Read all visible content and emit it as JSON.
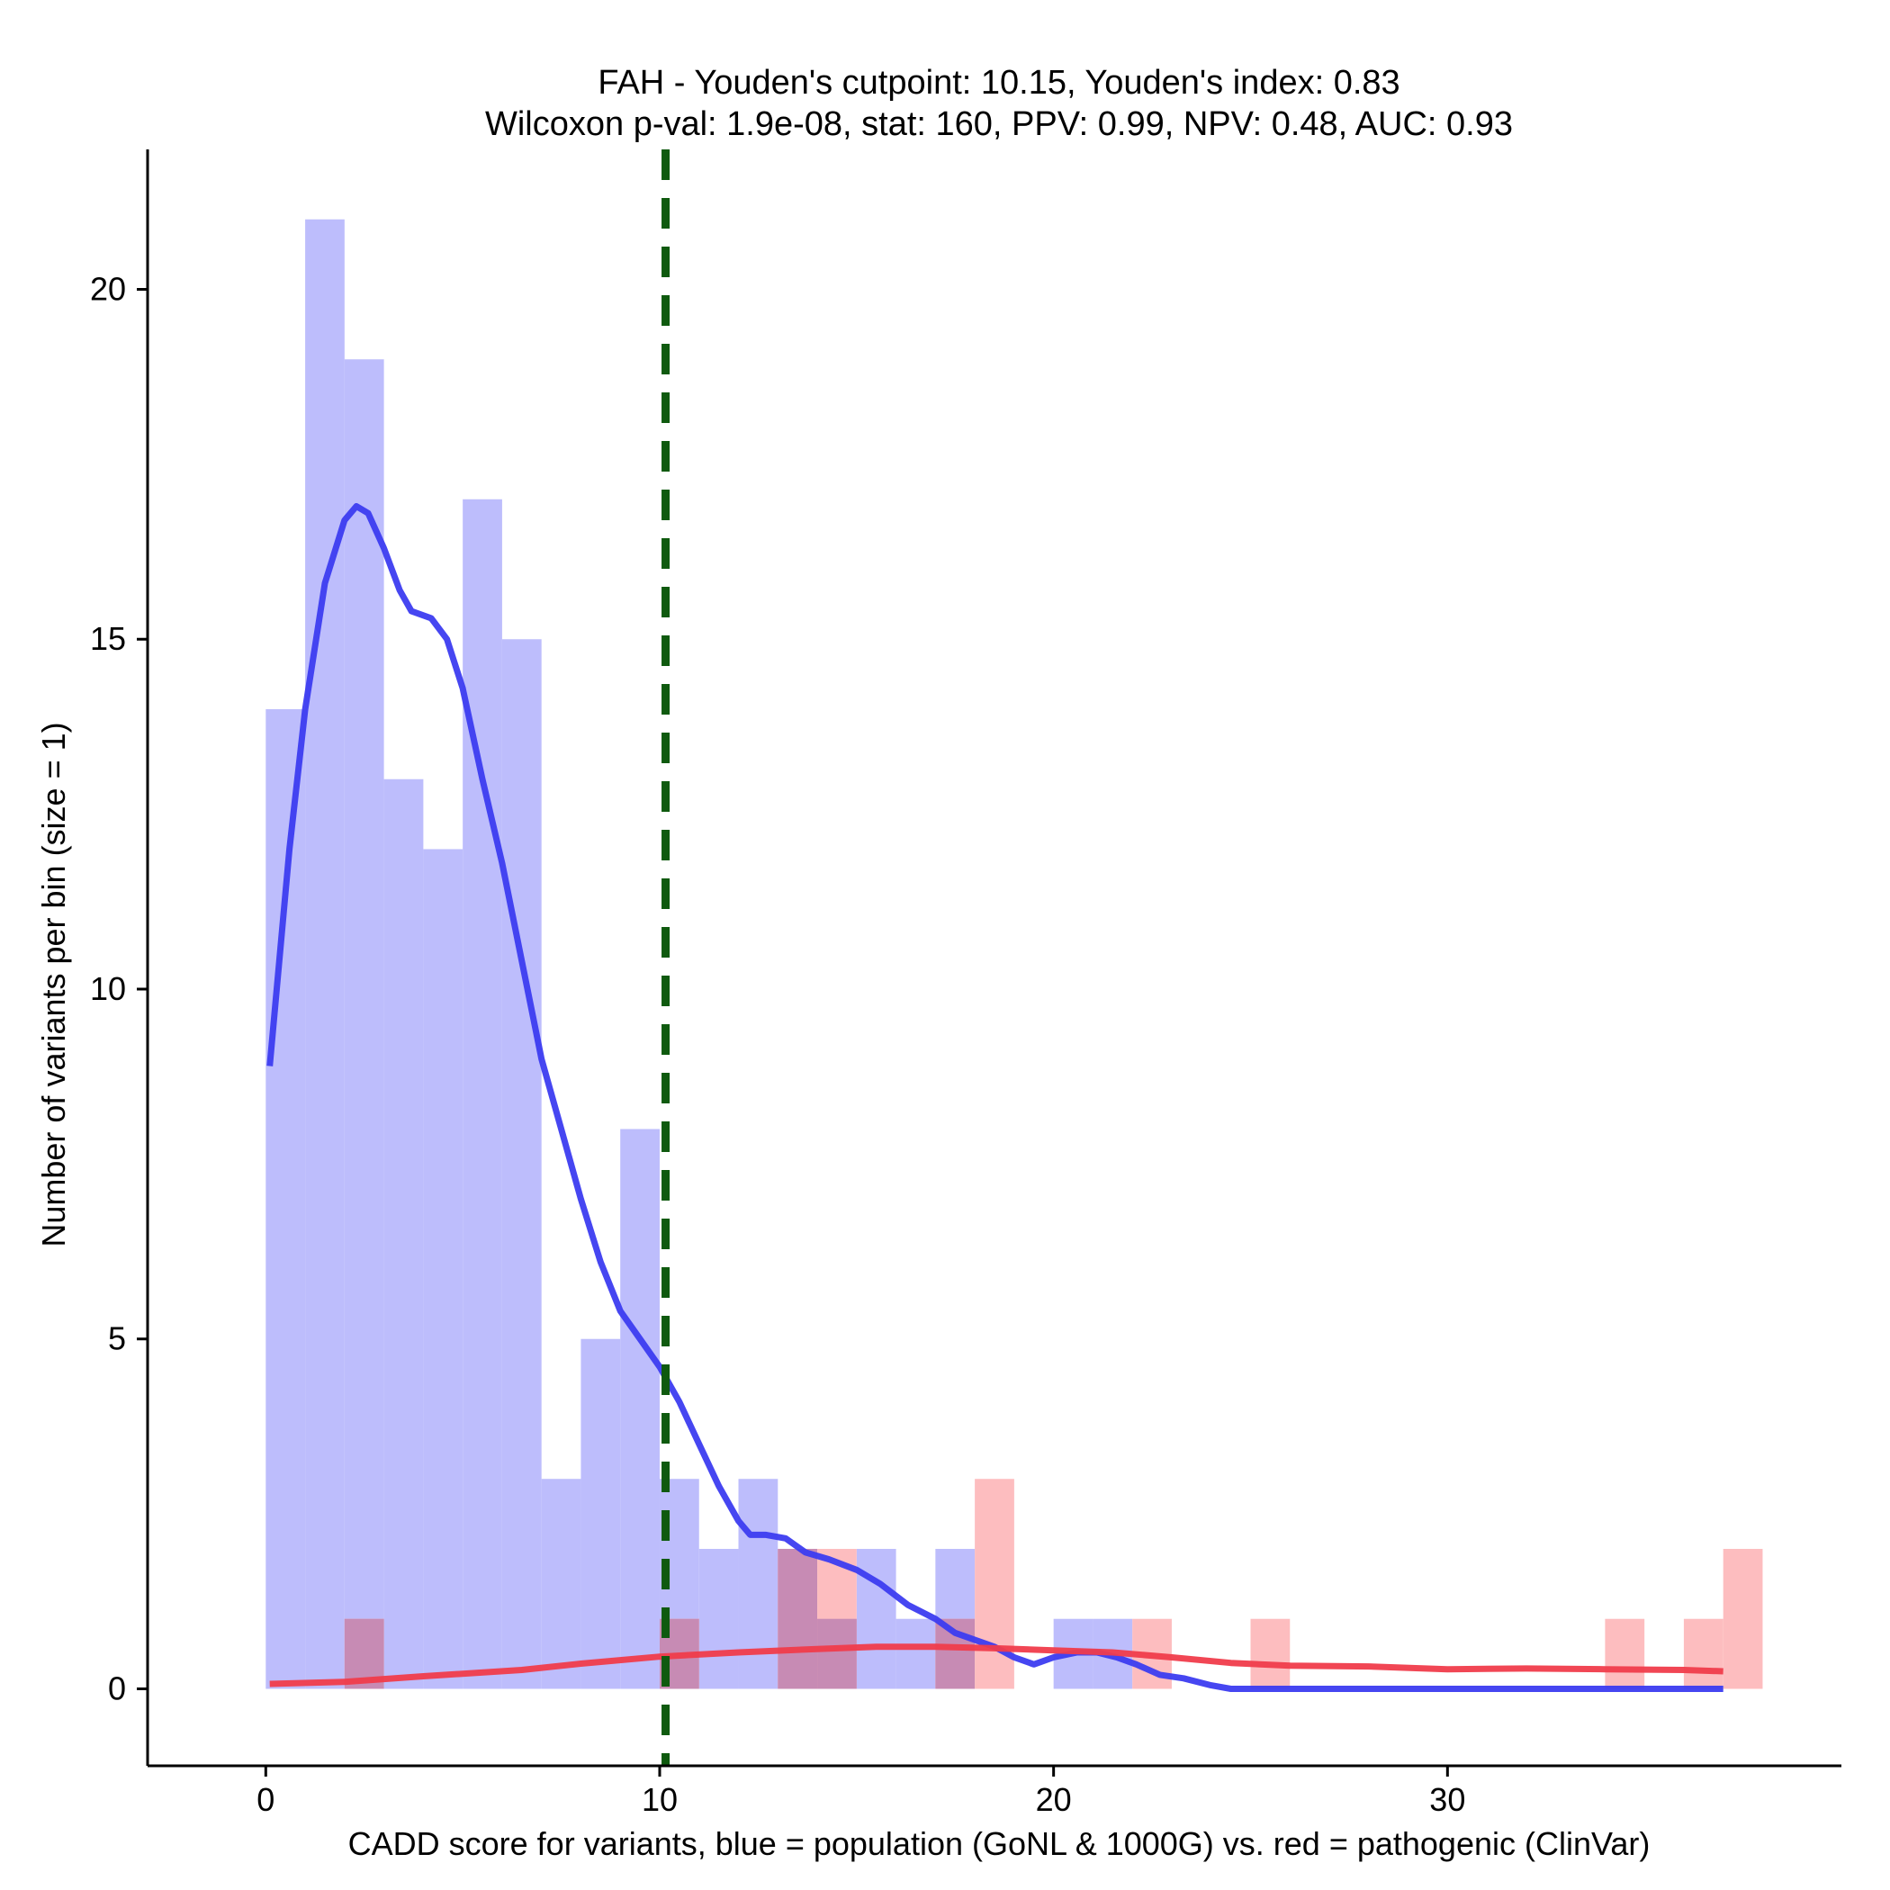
{
  "chart_data": {
    "type": "bar",
    "title_lines": [
      "FAH - Youden's cutpoint: 10.15, Youden's index: 0.83",
      "Wilcoxon p-val: 1.9e-08, stat: 160, PPV: 0.99, NPV: 0.48, AUC: 0.93"
    ],
    "xlabel": "CADD score for variants, blue = population (GoNL & 1000G) vs. red = pathogenic (ClinVar)",
    "ylabel": "Number of variants per bin (size = 1)",
    "xlim": [
      -3,
      40
    ],
    "ylim": [
      -1.1,
      22.0
    ],
    "xticks": [
      0,
      10,
      20,
      30
    ],
    "yticks": [
      0,
      5,
      10,
      15,
      20
    ],
    "bin_width": 1,
    "cutpoint": 10.15,
    "colors": {
      "population_bar": "#bdbdfc",
      "pathogenic_bar": "#fdbdbf",
      "overlap_bar": "#c78bb4",
      "population_line": "#3c3cf0",
      "pathogenic_line": "#f03c4b",
      "cutpoint_line": "#0f5a0f"
    },
    "series": [
      {
        "name": "population (GoNL & 1000G)",
        "bins": [
          [
            0,
            14
          ],
          [
            1,
            21
          ],
          [
            2,
            19
          ],
          [
            3,
            13
          ],
          [
            4,
            12
          ],
          [
            5,
            17
          ],
          [
            6,
            15
          ],
          [
            7,
            3
          ],
          [
            8,
            5
          ],
          [
            9,
            8
          ],
          [
            10,
            3
          ],
          [
            11,
            2
          ],
          [
            12,
            3
          ],
          [
            13,
            2
          ],
          [
            14,
            1
          ],
          [
            15,
            2
          ],
          [
            16,
            1
          ],
          [
            17,
            2
          ],
          [
            20,
            1
          ],
          [
            21,
            1
          ]
        ]
      },
      {
        "name": "pathogenic (ClinVar)",
        "bins": [
          [
            2,
            1
          ],
          [
            10,
            1
          ],
          [
            13,
            2
          ],
          [
            14,
            2
          ],
          [
            17,
            1
          ],
          [
            18,
            3
          ],
          [
            22,
            1
          ],
          [
            25,
            1
          ],
          [
            34,
            1
          ],
          [
            36,
            1
          ],
          [
            37,
            2
          ]
        ]
      }
    ],
    "density_lines": [
      {
        "name": "population density",
        "points": [
          [
            0.1,
            8.9
          ],
          [
            0.6,
            12.0
          ],
          [
            1.0,
            14.0
          ],
          [
            1.5,
            15.8
          ],
          [
            2.0,
            16.7
          ],
          [
            2.3,
            16.9
          ],
          [
            2.6,
            16.8
          ],
          [
            3.0,
            16.3
          ],
          [
            3.4,
            15.7
          ],
          [
            3.7,
            15.4
          ],
          [
            4.2,
            15.3
          ],
          [
            4.6,
            15.0
          ],
          [
            5.0,
            14.3
          ],
          [
            5.5,
            13.0
          ],
          [
            6.0,
            11.8
          ],
          [
            6.5,
            10.4
          ],
          [
            7.0,
            9.0
          ],
          [
            7.5,
            8.0
          ],
          [
            8.0,
            7.0
          ],
          [
            8.5,
            6.1
          ],
          [
            9.0,
            5.4
          ],
          [
            9.5,
            5.0
          ],
          [
            10.0,
            4.6
          ],
          [
            10.5,
            4.1
          ],
          [
            11.0,
            3.5
          ],
          [
            11.5,
            2.9
          ],
          [
            12.0,
            2.4
          ],
          [
            12.3,
            2.2
          ],
          [
            12.7,
            2.2
          ],
          [
            13.2,
            2.15
          ],
          [
            13.7,
            1.95
          ],
          [
            14.3,
            1.85
          ],
          [
            15.0,
            1.7
          ],
          [
            15.6,
            1.5
          ],
          [
            16.3,
            1.2
          ],
          [
            17.0,
            1.0
          ],
          [
            17.5,
            0.8
          ],
          [
            18.0,
            0.7
          ],
          [
            18.5,
            0.6
          ],
          [
            19.0,
            0.45
          ],
          [
            19.5,
            0.35
          ],
          [
            20.0,
            0.45
          ],
          [
            20.6,
            0.52
          ],
          [
            21.1,
            0.52
          ],
          [
            21.6,
            0.45
          ],
          [
            22.1,
            0.35
          ],
          [
            22.7,
            0.2
          ],
          [
            23.3,
            0.15
          ],
          [
            24.0,
            0.05
          ],
          [
            24.5,
            0.0
          ],
          [
            37.0,
            0.0
          ]
        ]
      },
      {
        "name": "pathogenic density",
        "points": [
          [
            0.1,
            0.07
          ],
          [
            2.0,
            0.1
          ],
          [
            4.0,
            0.18
          ],
          [
            6.5,
            0.27
          ],
          [
            8.0,
            0.36
          ],
          [
            10.0,
            0.46
          ],
          [
            12.0,
            0.52
          ],
          [
            14.0,
            0.57
          ],
          [
            15.5,
            0.6
          ],
          [
            17.0,
            0.6
          ],
          [
            18.5,
            0.58
          ],
          [
            20.0,
            0.55
          ],
          [
            21.5,
            0.52
          ],
          [
            23.0,
            0.45
          ],
          [
            24.5,
            0.37
          ],
          [
            26.0,
            0.33
          ],
          [
            28.0,
            0.32
          ],
          [
            30.0,
            0.28
          ],
          [
            32.0,
            0.29
          ],
          [
            34.0,
            0.28
          ],
          [
            36.0,
            0.27
          ],
          [
            37.0,
            0.25
          ]
        ]
      }
    ]
  }
}
